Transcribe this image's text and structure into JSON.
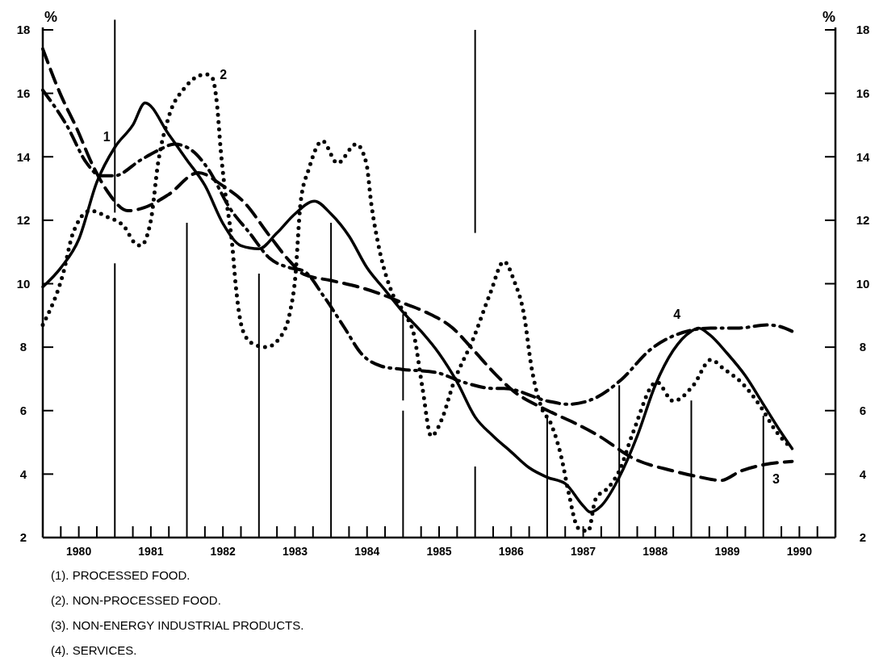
{
  "chart_data": {
    "type": "line",
    "ylabel": "%",
    "y2label": "%",
    "xlim": [
      1980,
      1991
    ],
    "ylim": [
      2,
      18
    ],
    "y2lim": [
      2,
      18
    ],
    "yticks": [
      2,
      4,
      6,
      8,
      10,
      12,
      14,
      16,
      18
    ],
    "y2ticks": [
      2,
      4,
      6,
      8,
      10,
      12,
      14,
      16,
      18
    ],
    "xticks": [
      {
        "value": 1980.25,
        "label": null
      },
      {
        "value": 1980.5,
        "label": "1980"
      },
      {
        "value": 1980.75,
        "label": null
      },
      {
        "value": 1981.25,
        "label": null
      },
      {
        "value": 1981.5,
        "label": "1981"
      },
      {
        "value": 1981.75,
        "label": null
      },
      {
        "value": 1982.25,
        "label": null
      },
      {
        "value": 1982.5,
        "label": "1982"
      },
      {
        "value": 1982.75,
        "label": null
      },
      {
        "value": 1983.25,
        "label": null
      },
      {
        "value": 1983.5,
        "label": "1983"
      },
      {
        "value": 1983.75,
        "label": null
      },
      {
        "value": 1984.25,
        "label": null
      },
      {
        "value": 1984.5,
        "label": "1984"
      },
      {
        "value": 1984.75,
        "label": null
      },
      {
        "value": 1985.25,
        "label": null
      },
      {
        "value": 1985.5,
        "label": "1985"
      },
      {
        "value": 1985.75,
        "label": null
      },
      {
        "value": 1986.25,
        "label": null
      },
      {
        "value": 1986.5,
        "label": "1986"
      },
      {
        "value": 1986.75,
        "label": null
      },
      {
        "value": 1987.25,
        "label": null
      },
      {
        "value": 1987.5,
        "label": "1987"
      },
      {
        "value": 1987.75,
        "label": null
      },
      {
        "value": 1988.25,
        "label": null
      },
      {
        "value": 1988.5,
        "label": "1988"
      },
      {
        "value": 1988.75,
        "label": null
      },
      {
        "value": 1989.25,
        "label": null
      },
      {
        "value": 1989.5,
        "label": "1989"
      },
      {
        "value": 1989.75,
        "label": null
      },
      {
        "value": 1990.25,
        "label": null
      },
      {
        "value": 1990.5,
        "label": "1990"
      },
      {
        "value": 1990.75,
        "label": null
      }
    ],
    "series": [
      {
        "name": "1",
        "color": "#000000",
        "line_style": "solid",
        "x": [
          1980,
          1980.25,
          1980.5,
          1980.75,
          1981,
          1981.25,
          1981.42,
          1981.75,
          1982,
          1982.25,
          1982.5,
          1982.75,
          1983,
          1983.25,
          1983.5,
          1983.77,
          1984,
          1984.25,
          1984.5,
          1984.75,
          1985,
          1985.25,
          1985.5,
          1985.75,
          1986,
          1986.25,
          1986.5,
          1986.75,
          1987,
          1987.25,
          1987.5,
          1987.6,
          1987.75,
          1988,
          1988.25,
          1988.5,
          1988.75,
          1989,
          1989.1,
          1989.25,
          1989.5,
          1989.75,
          1990,
          1990.25,
          1990.4
        ],
        "values": [
          9.9,
          10.5,
          11.4,
          13.2,
          14.3,
          15,
          15.7,
          14.7,
          13.9,
          13.1,
          11.9,
          11.2,
          11.1,
          11.6,
          12.2,
          12.6,
          12.2,
          11.5,
          10.5,
          9.8,
          9.1,
          8.5,
          7.8,
          6.9,
          5.8,
          5.2,
          4.7,
          4.2,
          3.9,
          3.7,
          3,
          2.8,
          3,
          3.9,
          5.2,
          6.8,
          7.9,
          8.5,
          8.6,
          8.4,
          7.8,
          7.1,
          6.2,
          5.3,
          4.8
        ]
      },
      {
        "name": "2",
        "color": "#000000",
        "line_style": "dotted",
        "x": [
          1980,
          1980.28,
          1980.42,
          1980.66,
          1980.9,
          1981.13,
          1981.27,
          1981.36,
          1981.5,
          1981.6,
          1981.74,
          1981.98,
          1982.26,
          1982.35,
          1982.42,
          1982.47,
          1982.52,
          1982.63,
          1982.68,
          1982.78,
          1982.92,
          1983.1,
          1983.29,
          1983.43,
          1983.5,
          1983.58,
          1983.69,
          1983.88,
          1984.09,
          1984.35,
          1984.49,
          1984.56,
          1984.66,
          1984.85,
          1985.04,
          1985.15,
          1985.27,
          1985.39,
          1985.55,
          1985.69,
          1985.98,
          1986.21,
          1986.4,
          1986.54,
          1986.68,
          1986.78,
          1986.92,
          1987.05,
          1987.2,
          1987.29,
          1987.43,
          1987.57,
          1987.67,
          1987.86,
          1988,
          1988.19,
          1988.52,
          1988.75,
          1989.03,
          1989.27,
          1989.46,
          1989.69,
          1989.97,
          1990.16,
          1990.4
        ],
        "values": [
          8.7,
          10.3,
          11.6,
          12.3,
          12.1,
          11.8,
          11.3,
          11.2,
          12,
          13.8,
          15.2,
          16.2,
          16.6,
          16.5,
          15.6,
          14.2,
          13.1,
          11.2,
          9.9,
          8.5,
          8.1,
          8,
          8.3,
          9.1,
          10.1,
          12.6,
          13.6,
          14.5,
          13.8,
          14.4,
          13.8,
          12.5,
          11.2,
          9.7,
          9,
          8.4,
          6.7,
          5.2,
          5.8,
          6.8,
          8.3,
          9.7,
          10.7,
          10.1,
          9,
          7.4,
          6.1,
          5.6,
          4.5,
          3.5,
          2.3,
          2.2,
          3.2,
          3.6,
          4.1,
          5.3,
          6.9,
          6.3,
          6.8,
          7.6,
          7.3,
          6.9,
          6.1,
          5.4,
          4.8
        ]
      },
      {
        "name": "3",
        "color": "#000000",
        "line_style": "dashed",
        "x": [
          1980,
          1980.24,
          1980.47,
          1980.7,
          1980.9,
          1981.18,
          1981.41,
          1981.74,
          1982.16,
          1982.49,
          1982.78,
          1983.15,
          1983.43,
          1983.62,
          1984,
          1984.38,
          1984.66,
          1984.99,
          1985.32,
          1985.69,
          1985.98,
          1986.26,
          1986.54,
          1986.92,
          1987.2,
          1987.39,
          1987.72,
          1988.19,
          1988.75,
          1989.13,
          1989.41,
          1989.69,
          1990.02,
          1990.4
        ],
        "values": [
          17.4,
          16,
          14.9,
          13.7,
          12.9,
          12.3,
          12.4,
          12.8,
          13.5,
          13.1,
          12.6,
          11.5,
          10.7,
          10.3,
          10.1,
          9.9,
          9.7,
          9.4,
          9.1,
          8.6,
          7.9,
          7.2,
          6.6,
          6.1,
          5.8,
          5.6,
          5.2,
          4.5,
          4.1,
          3.9,
          3.8,
          4.1,
          4.3,
          4.4
        ]
      },
      {
        "name": "4",
        "color": "#000000",
        "line_style": "dashdot",
        "x": [
          1980,
          1980.33,
          1980.61,
          1980.8,
          1980.99,
          1981.36,
          1981.6,
          1981.83,
          1982.07,
          1982.3,
          1982.59,
          1982.87,
          1983.15,
          1983.43,
          1983.62,
          1983.9,
          1984.19,
          1984.42,
          1984.7,
          1984.99,
          1985.46,
          1985.83,
          1986.26,
          1986.4,
          1987.01,
          1987.29,
          1987.67,
          1988.04,
          1988.42,
          1988.8,
          1989.27,
          1989.64,
          1990.07,
          1990.3,
          1990.4
        ],
        "values": [
          16.1,
          15,
          13.8,
          13.4,
          13.4,
          13.9,
          14.2,
          14.4,
          14.2,
          13.6,
          12.4,
          11.6,
          10.8,
          10.5,
          10.4,
          9.6,
          8.6,
          7.8,
          7.4,
          7.3,
          7.2,
          6.9,
          6.7,
          6.7,
          6.3,
          6.2,
          6.4,
          7,
          7.9,
          8.4,
          8.6,
          8.6,
          8.7,
          8.6,
          8.5
        ]
      }
    ],
    "ref_lines": [
      {
        "axis": "x",
        "value": 1981
      },
      {
        "axis": "x",
        "value": 1982
      },
      {
        "axis": "x",
        "value": 1983
      },
      {
        "axis": "x",
        "value": 1984
      },
      {
        "axis": "x",
        "value": 1985
      },
      {
        "axis": "x",
        "value": 1986
      },
      {
        "axis": "x",
        "value": 1987
      },
      {
        "axis": "x",
        "value": 1988
      },
      {
        "axis": "x",
        "value": 1989
      },
      {
        "axis": "x",
        "value": 1990
      }
    ],
    "annotations": [
      "(1). PROCESSED FOOD.",
      "(2). NON-PROCESSED FOOD.",
      "(3). NON-ENERGY INDUSTRIAL PRODUCTS.",
      "(4). SERVICES."
    ]
  }
}
